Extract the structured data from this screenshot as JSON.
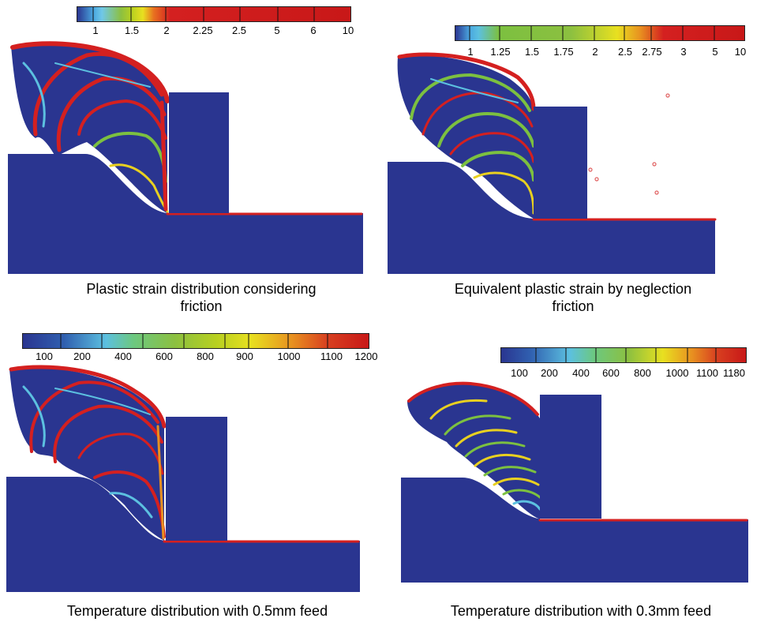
{
  "panels": [
    {
      "id": "p1",
      "caption_line1": "Plastic strain distribution considering",
      "caption_line2": "friction",
      "scale_ticks": [
        "1",
        "1.5",
        "2",
        "2.25",
        "2.5",
        "5",
        "6",
        "10"
      ]
    },
    {
      "id": "p2",
      "caption_line1": "Equivalent plastic strain by neglection",
      "caption_line2": "friction",
      "scale_ticks": [
        "1",
        "1.25",
        "1.5",
        "1.75",
        "2",
        "2.5",
        "2.75",
        "3",
        "5",
        "10"
      ]
    },
    {
      "id": "p3",
      "caption_line1": "Temperature distribution with 0.5mm feed",
      "scale_ticks": [
        "100",
        "200",
        "400",
        "600",
        "800",
        "900",
        "1000",
        "1100",
        "1200"
      ]
    },
    {
      "id": "p4",
      "caption_line1": "Temperature distribution with 0.3mm feed",
      "scale_ticks": [
        "100",
        "200",
        "400",
        "600",
        "800",
        "1000",
        "1100",
        "1180"
      ]
    }
  ],
  "colors": {
    "workpiece": "#2a3590",
    "tool": "#2a3590",
    "band_high": "#d42020",
    "band_mid": "#e8d020",
    "band_low": "#5cc0e0",
    "band_green": "#7cc040"
  }
}
